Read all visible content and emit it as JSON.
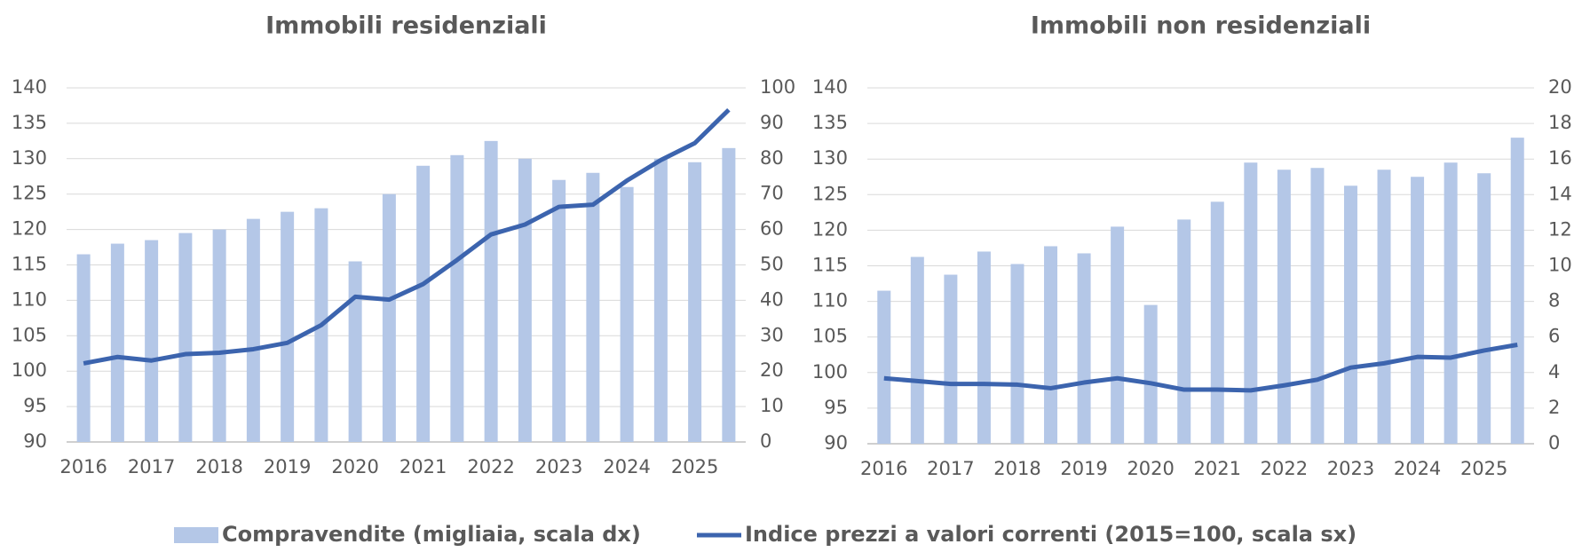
{
  "chart_data": [
    {
      "type": "bar_line",
      "title": "Immobili residenziali",
      "categories": [
        "2016",
        null,
        "2017",
        null,
        "2018",
        null,
        "2019",
        null,
        "2020",
        null,
        "2021",
        null,
        "2022",
        null,
        "2023",
        null,
        "2024",
        null,
        "2025",
        null
      ],
      "series": [
        {
          "name": "Compravendite (migliaia, scala dx)",
          "color": "#b4c7e7",
          "kind": "bar",
          "axis": "y2",
          "values": [
            53,
            56,
            57,
            59,
            60,
            63,
            65,
            66,
            51,
            70,
            78,
            81,
            85,
            80,
            74,
            76,
            72,
            80,
            79,
            83
          ]
        },
        {
          "name": "Indice prezzi a valori correnti (2015=100, scala sx)",
          "color": "#3c64ae",
          "kind": "line",
          "axis": "y",
          "values": [
            101.1,
            102,
            101.5,
            102.4,
            102.6,
            103.1,
            104,
            106.5,
            110.5,
            110.1,
            112.3,
            115.7,
            119.3,
            120.7,
            123.2,
            123.5,
            126.9,
            129.8,
            132.2,
            136.9
          ]
        }
      ],
      "ylim": [
        90,
        140
      ],
      "yticks": [
        90,
        95,
        100,
        105,
        110,
        115,
        120,
        125,
        130,
        135,
        140
      ],
      "y2lim": [
        0,
        100
      ],
      "y2ticks": [
        0,
        10,
        20,
        30,
        40,
        50,
        60,
        70,
        80,
        90,
        100
      ],
      "grid": true
    },
    {
      "type": "bar_line",
      "title": "Immobili non residenziali",
      "categories": [
        "2016",
        null,
        "2017",
        null,
        "2018",
        null,
        "2019",
        null,
        "2020",
        null,
        "2021",
        null,
        "2022",
        null,
        "2023",
        null,
        "2024",
        null,
        "2025",
        null
      ],
      "series": [
        {
          "color": "#b4c7e7",
          "kind": "bar",
          "axis": "y2",
          "values": [
            8.6,
            10.5,
            9.5,
            10.8,
            10.1,
            11.1,
            10.7,
            12.2,
            7.8,
            12.6,
            13.6,
            15.8,
            15.4,
            15.5,
            14.5,
            15.4,
            15,
            15.8,
            15.2,
            17.2
          ]
        },
        {
          "color": "#3c64ae",
          "kind": "line",
          "axis": "y",
          "values": [
            99.2,
            98.8,
            98.4,
            98.4,
            98.3,
            97.8,
            98.6,
            99.2,
            98.5,
            97.6,
            97.6,
            97.5,
            98.2,
            99,
            100.7,
            101.3,
            102.2,
            102.1,
            103.1,
            103.9
          ]
        }
      ],
      "ylim": [
        90,
        140
      ],
      "yticks": [
        90,
        95,
        100,
        105,
        110,
        115,
        120,
        125,
        130,
        135,
        140
      ],
      "y2lim": [
        0,
        20
      ],
      "y2ticks": [
        0,
        2,
        4,
        6,
        8,
        10,
        12,
        14,
        16,
        18,
        20
      ],
      "grid": true
    }
  ]
}
